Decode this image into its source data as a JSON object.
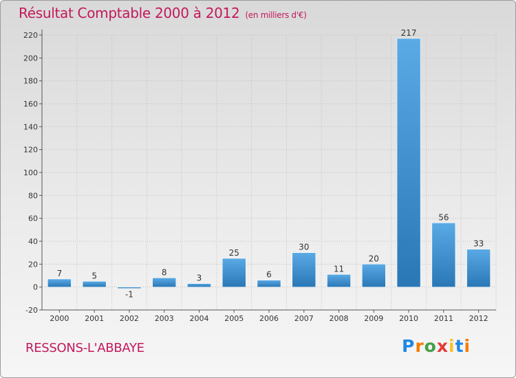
{
  "title": "Résultat Comptable 2000 à 2012",
  "subtitle": "(en milliers d'€)",
  "commune": "RESSONS-L'ABBAYE",
  "logo": {
    "letters": [
      "P",
      "r",
      "o",
      "x",
      "i",
      "t",
      "i"
    ],
    "colors": [
      "#1e88e5",
      "#f57c00",
      "#43a047",
      "#e53935",
      "#fbc02d",
      "#1e88e5",
      "#f57c00"
    ]
  },
  "colors": {
    "bar_light": "#5aaae6",
    "bar_dark": "#2a77b6",
    "title": "#c2185b",
    "grid": "#bfbfbf"
  },
  "chart_data": {
    "type": "bar",
    "title": "Résultat Comptable 2000 à 2012",
    "xlabel": "",
    "ylabel": "",
    "ylim": [
      -20,
      220
    ],
    "yticks": [
      -20,
      0,
      20,
      40,
      60,
      80,
      100,
      120,
      140,
      160,
      180,
      200,
      220
    ],
    "grid": true,
    "categories": [
      "2000",
      "2001",
      "2002",
      "2003",
      "2004",
      "2005",
      "2006",
      "2007",
      "2008",
      "2009",
      "2010",
      "2011",
      "2012"
    ],
    "values": [
      7,
      5,
      -1,
      8,
      3,
      25,
      6,
      30,
      11,
      20,
      217,
      56,
      33
    ]
  }
}
